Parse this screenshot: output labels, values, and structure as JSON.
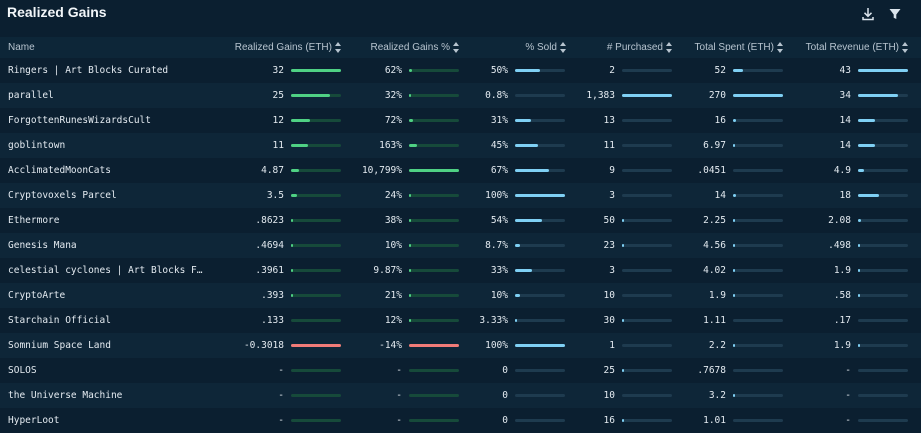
{
  "title": "Realized Gains",
  "icons": {
    "download": "download-icon",
    "filter": "filter-icon"
  },
  "colors": {
    "positive": "#4fd184",
    "negative": "#f07b78",
    "neutral": "#7fd0f4",
    "background": "#0b1f30"
  },
  "columns": [
    "Name",
    "Realized Gains (ETH)",
    "Realized Gains %",
    "% Sold",
    "# Purchased",
    "Total Spent (ETH)",
    "Total Revenue (ETH)"
  ],
  "rows": [
    {
      "name": "Ringers | Art Blocks Curated",
      "gains_eth": "32",
      "gains_eth_frac": 1.0,
      "gains_pct": "62%",
      "gains_pct_frac": 0.06,
      "sold": "50%",
      "sold_frac": 0.5,
      "purchased": "2",
      "purchased_frac": 0.0,
      "spent": "52",
      "spent_frac": 0.19,
      "revenue": "43",
      "revenue_frac": 1.0
    },
    {
      "name": "parallel",
      "gains_eth": "25",
      "gains_eth_frac": 0.78,
      "gains_pct": "32%",
      "gains_pct_frac": 0.03,
      "sold": "0.8%",
      "sold_frac": 0.0,
      "purchased": "1,383",
      "purchased_frac": 1.0,
      "spent": "270",
      "spent_frac": 1.0,
      "revenue": "34",
      "revenue_frac": 0.79
    },
    {
      "name": "ForgottenRunesWizardsCult",
      "gains_eth": "12",
      "gains_eth_frac": 0.38,
      "gains_pct": "72%",
      "gains_pct_frac": 0.07,
      "sold": "31%",
      "sold_frac": 0.31,
      "purchased": "13",
      "purchased_frac": 0.0,
      "spent": "16",
      "spent_frac": 0.06,
      "revenue": "14",
      "revenue_frac": 0.33
    },
    {
      "name": "goblintown",
      "gains_eth": "11",
      "gains_eth_frac": 0.34,
      "gains_pct": "163%",
      "gains_pct_frac": 0.15,
      "sold": "45%",
      "sold_frac": 0.45,
      "purchased": "11",
      "purchased_frac": 0.0,
      "spent": "6.97",
      "spent_frac": 0.03,
      "revenue": "14",
      "revenue_frac": 0.33
    },
    {
      "name": "AcclimatedMoonCats",
      "gains_eth": "4.87",
      "gains_eth_frac": 0.15,
      "gains_pct": "10,799%",
      "gains_pct_frac": 1.0,
      "sold": "67%",
      "sold_frac": 0.67,
      "purchased": "9",
      "purchased_frac": 0.0,
      "spent": ".0451",
      "spent_frac": 0.0,
      "revenue": "4.9",
      "revenue_frac": 0.11
    },
    {
      "name": "Cryptovoxels Parcel",
      "gains_eth": "3.5",
      "gains_eth_frac": 0.11,
      "gains_pct": "24%",
      "gains_pct_frac": 0.02,
      "sold": "100%",
      "sold_frac": 1.0,
      "purchased": "3",
      "purchased_frac": 0.0,
      "spent": "14",
      "spent_frac": 0.05,
      "revenue": "18",
      "revenue_frac": 0.42
    },
    {
      "name": "Ethermore",
      "gains_eth": ".8623",
      "gains_eth_frac": 0.03,
      "gains_pct": "38%",
      "gains_pct_frac": 0.04,
      "sold": "54%",
      "sold_frac": 0.54,
      "purchased": "50",
      "purchased_frac": 0.04,
      "spent": "2.25",
      "spent_frac": 0.01,
      "revenue": "2.08",
      "revenue_frac": 0.05
    },
    {
      "name": "Genesis Mana",
      "gains_eth": ".4694",
      "gains_eth_frac": 0.01,
      "gains_pct": "10%",
      "gains_pct_frac": 0.01,
      "sold": "8.7%",
      "sold_frac": 0.09,
      "purchased": "23",
      "purchased_frac": 0.02,
      "spent": "4.56",
      "spent_frac": 0.02,
      "revenue": ".498",
      "revenue_frac": 0.01
    },
    {
      "name": "celestial cyclones | Art Blocks F…",
      "gains_eth": ".3961",
      "gains_eth_frac": 0.01,
      "gains_pct": "9.87%",
      "gains_pct_frac": 0.01,
      "sold": "33%",
      "sold_frac": 0.33,
      "purchased": "3",
      "purchased_frac": 0.0,
      "spent": "4.02",
      "spent_frac": 0.01,
      "revenue": "1.9",
      "revenue_frac": 0.04
    },
    {
      "name": "CryptoArte",
      "gains_eth": ".393",
      "gains_eth_frac": 0.01,
      "gains_pct": "21%",
      "gains_pct_frac": 0.02,
      "sold": "10%",
      "sold_frac": 0.1,
      "purchased": "10",
      "purchased_frac": 0.0,
      "spent": "1.9",
      "spent_frac": 0.01,
      "revenue": ".58",
      "revenue_frac": 0.01
    },
    {
      "name": "Starchain Official",
      "gains_eth": ".133",
      "gains_eth_frac": 0.0,
      "gains_pct": "12%",
      "gains_pct_frac": 0.01,
      "sold": "3.33%",
      "sold_frac": 0.03,
      "purchased": "30",
      "purchased_frac": 0.02,
      "spent": "1.11",
      "spent_frac": 0.0,
      "revenue": ".17",
      "revenue_frac": 0.0
    },
    {
      "name": "Somnium Space Land",
      "gains_eth": "-0.3018",
      "gains_eth_frac": 1.0,
      "gains_eth_neg": true,
      "gains_pct": "-14%",
      "gains_pct_frac": 1.0,
      "gains_pct_neg": true,
      "sold": "100%",
      "sold_frac": 1.0,
      "purchased": "1",
      "purchased_frac": 0.0,
      "spent": "2.2",
      "spent_frac": 0.01,
      "revenue": "1.9",
      "revenue_frac": 0.04
    },
    {
      "name": "SOLOS",
      "gains_eth": "-",
      "gains_eth_frac": 0.0,
      "gains_pct": "-",
      "gains_pct_frac": 0.0,
      "sold": "0",
      "sold_frac": 0.0,
      "purchased": "25",
      "purchased_frac": 0.02,
      "spent": ".7678",
      "spent_frac": 0.0,
      "revenue": "-",
      "revenue_frac": 0.0
    },
    {
      "name": "the Universe Machine",
      "gains_eth": "-",
      "gains_eth_frac": 0.0,
      "gains_pct": "-",
      "gains_pct_frac": 0.0,
      "sold": "0",
      "sold_frac": 0.0,
      "purchased": "10",
      "purchased_frac": 0.0,
      "spent": "3.2",
      "spent_frac": 0.01,
      "revenue": "-",
      "revenue_frac": 0.0
    },
    {
      "name": "HyperLoot",
      "gains_eth": "-",
      "gains_eth_frac": 0.0,
      "gains_pct": "-",
      "gains_pct_frac": 0.0,
      "sold": "0",
      "sold_frac": 0.0,
      "purchased": "16",
      "purchased_frac": 0.01,
      "spent": "1.01",
      "spent_frac": 0.0,
      "revenue": "-",
      "revenue_frac": 0.0
    }
  ]
}
